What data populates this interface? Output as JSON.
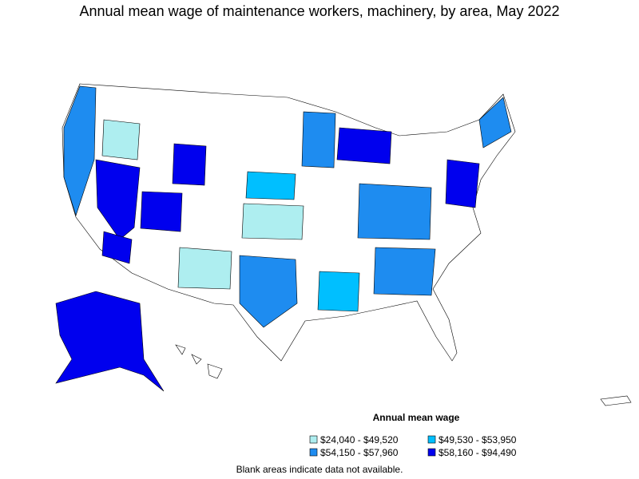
{
  "title": "Annual mean wage of maintenance workers, machinery, by area, May 2022",
  "legend": {
    "title": "Annual mean wage",
    "items": [
      {
        "label": "$24,040 - $49,520",
        "color": "#aeeef0"
      },
      {
        "label": "$49,530 - $53,950",
        "color": "#00bfff"
      },
      {
        "label": "$54,150 - $57,960",
        "color": "#1e8cf0"
      },
      {
        "label": "$58,160 - $94,490",
        "color": "#0000ee"
      }
    ]
  },
  "note": "Blank areas indicate data not available."
}
